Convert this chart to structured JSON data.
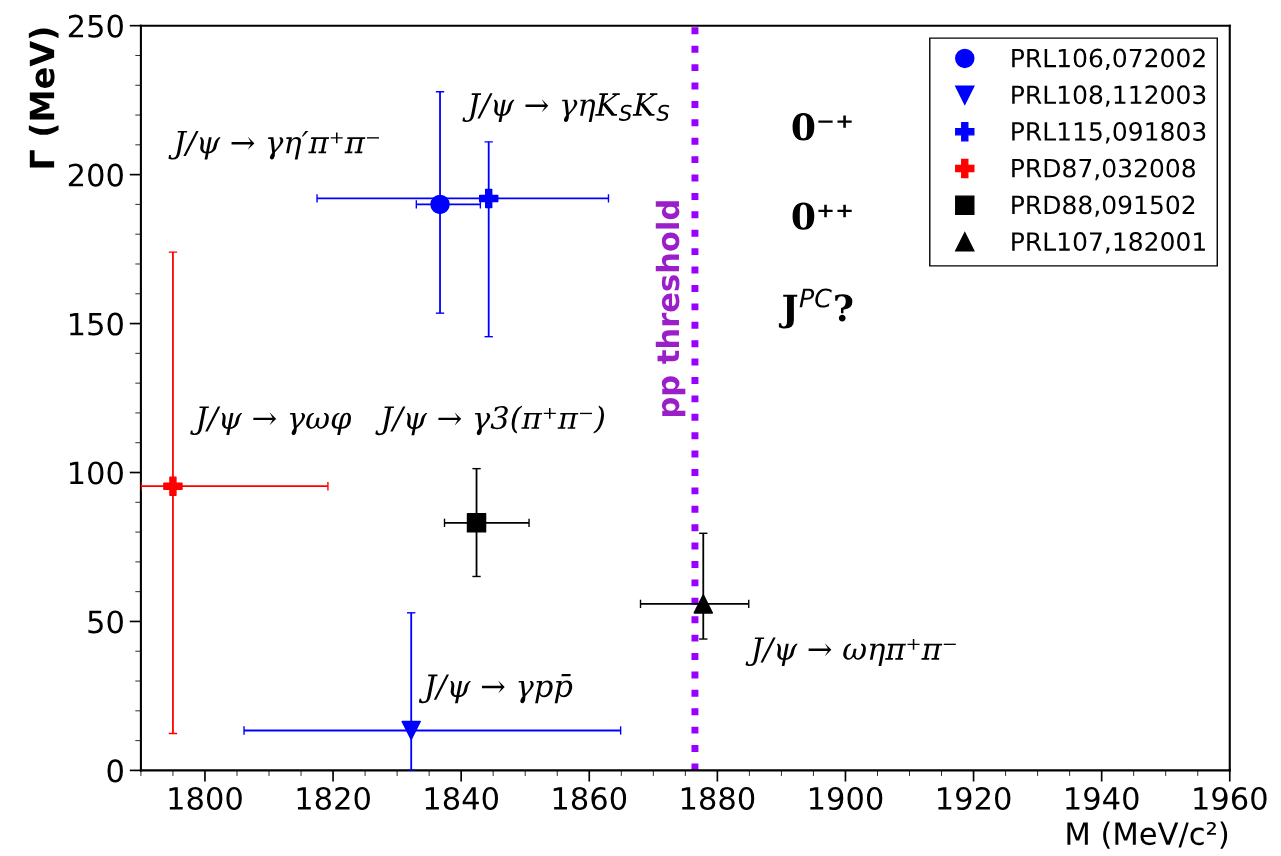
{
  "chart_data": {
    "type": "scatter",
    "xlabel": "M (MeV/c²)",
    "ylabel": "Γ (MeV)",
    "xlim": [
      1790,
      1960
    ],
    "xticks": [
      1800,
      1820,
      1840,
      1860,
      1880,
      1900,
      1920,
      1940,
      1960
    ],
    "ylim": [
      0,
      250
    ],
    "yticks": [
      0,
      50,
      100,
      150,
      200,
      250
    ],
    "grid": false,
    "legend": "top right",
    "series": [
      {
        "name": "PRL106,072002",
        "color": "#0000ff",
        "marker": "circle",
        "x": [
          1836.7
        ],
        "values": [
          190
        ],
        "errors": [
          [
            153.5,
            227.8
          ]
        ],
        "xerrors": [
          [
            1833.0,
            1843.0
          ]
        ]
      },
      {
        "name": "PRL108,112003",
        "color": "#0000ff",
        "marker": "triangle_down",
        "x": [
          1832.2
        ],
        "values": [
          13.4
        ],
        "errors": [
          [
            0,
            52.9
          ]
        ],
        "xerrors": [
          [
            1806.1,
            1864.9
          ]
        ]
      },
      {
        "name": "PRL115,091803",
        "color": "#0000ff",
        "marker": "cross",
        "x": [
          1844.3
        ],
        "values": [
          192
        ],
        "errors": [
          [
            145.6,
            211
          ]
        ],
        "xerrors": [
          [
            1817.5,
            1863
          ]
        ]
      },
      {
        "name": "PRD87,032008",
        "color": "#ff0000",
        "marker": "cross",
        "x": [
          1795
        ],
        "values": [
          95.4
        ],
        "errors": [
          [
            12.4,
            174
          ]
        ],
        "xerrors": [
          [
            1790,
            1819.2
          ]
        ]
      },
      {
        "name": "PRD88,091502",
        "color": "#000000",
        "marker": "square",
        "x": [
          1842.4
        ],
        "values": [
          83.1
        ],
        "errors": [
          [
            65.1,
            101.3
          ]
        ],
        "xerrors": [
          [
            1837.4,
            1850.6
          ]
        ]
      },
      {
        "name": "PRL107,182001",
        "color": "#000000",
        "marker": "triangle",
        "x": [
          1877.8
        ],
        "values": [
          55.9
        ],
        "errors": [
          [
            44.1,
            79.6
          ]
        ],
        "xerrors": [
          [
            1868,
            1884.9
          ]
        ]
      }
    ],
    "ref_lines": [
      {
        "axis": "x",
        "value": 1876.5,
        "label": "pp threshold",
        "color": "#9900ff",
        "line_style": "dotted"
      }
    ],
    "annotations": [
      "J/ψ → γη′π⁺π⁻",
      "J/ψ → γηK$_{S}$K$_{S}$",
      "J/ψ → γωφ",
      "J/ψ → γ3(π⁺π⁻)",
      "J/ψ → γpp̄",
      "J/ψ → ωηπ⁺π⁻",
      "0⁻⁺",
      "0⁺⁺",
      "J$^{PC}$?"
    ]
  }
}
